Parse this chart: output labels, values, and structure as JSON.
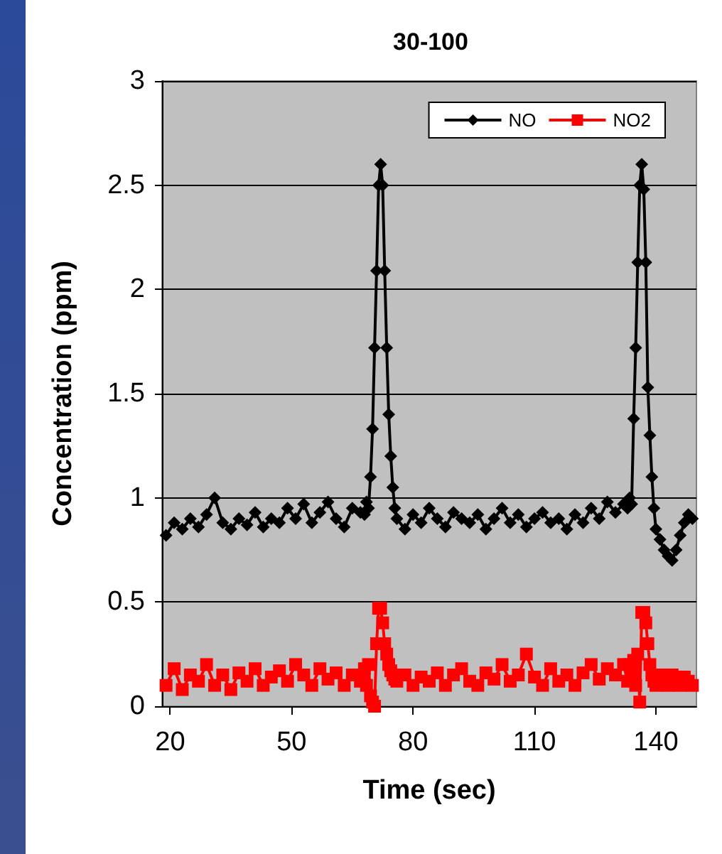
{
  "chart_data": {
    "type": "line",
    "title": "30-100",
    "xlabel": "Time (sec)",
    "ylabel": "Concentration (ppm)",
    "x": [
      19,
      21,
      23,
      25,
      27,
      29,
      31,
      33,
      35,
      37,
      39,
      41,
      43,
      45,
      47,
      49,
      51,
      53,
      55,
      57,
      59,
      61,
      63,
      65,
      67,
      68,
      68.5,
      69,
      69.5,
      70,
      70.5,
      71,
      71.5,
      72,
      72.5,
      73,
      73.5,
      74,
      74.5,
      75,
      75.5,
      76,
      78,
      80,
      82,
      84,
      86,
      88,
      90,
      92,
      94,
      96,
      98,
      100,
      102,
      104,
      106,
      108,
      110,
      112,
      114,
      116,
      118,
      120,
      122,
      124,
      126,
      128,
      130,
      132,
      133,
      133.5,
      134,
      134.5,
      135,
      135.5,
      136,
      136.5,
      137,
      137.5,
      138,
      138.5,
      139,
      139.5,
      140,
      141,
      142,
      143,
      144,
      145,
      146,
      147,
      148,
      149
    ],
    "series": [
      {
        "name": "NO",
        "color": "#000000",
        "marker": "diamond",
        "values": [
          0.82,
          0.88,
          0.85,
          0.9,
          0.86,
          0.92,
          1.0,
          0.88,
          0.85,
          0.9,
          0.87,
          0.93,
          0.86,
          0.9,
          0.88,
          0.95,
          0.9,
          0.97,
          0.88,
          0.93,
          0.98,
          0.9,
          0.86,
          0.95,
          0.93,
          0.92,
          0.98,
          0.95,
          1.1,
          1.33,
          1.72,
          2.09,
          2.5,
          2.6,
          2.5,
          2.09,
          1.72,
          1.4,
          1.2,
          1.05,
          0.95,
          0.9,
          0.85,
          0.92,
          0.88,
          0.95,
          0.9,
          0.86,
          0.93,
          0.9,
          0.88,
          0.92,
          0.85,
          0.9,
          0.95,
          0.88,
          0.92,
          0.86,
          0.9,
          0.93,
          0.88,
          0.9,
          0.85,
          0.92,
          0.88,
          0.95,
          0.9,
          0.98,
          0.93,
          0.97,
          0.95,
          1.0,
          0.97,
          1.38,
          1.72,
          2.13,
          2.5,
          2.6,
          2.48,
          2.13,
          1.53,
          1.3,
          1.1,
          0.95,
          0.85,
          0.8,
          0.75,
          0.72,
          0.7,
          0.75,
          0.82,
          0.88,
          0.92,
          0.9
        ]
      },
      {
        "name": "NO2",
        "color": "#ff0000",
        "marker": "square",
        "values": [
          0.1,
          0.18,
          0.08,
          0.15,
          0.12,
          0.2,
          0.1,
          0.15,
          0.08,
          0.16,
          0.12,
          0.18,
          0.1,
          0.14,
          0.17,
          0.12,
          0.2,
          0.15,
          0.1,
          0.18,
          0.13,
          0.16,
          0.1,
          0.15,
          0.12,
          0.18,
          0.1,
          0.2,
          0.05,
          0.02,
          0.0,
          0.3,
          0.47,
          0.47,
          0.4,
          0.3,
          0.25,
          0.2,
          0.17,
          0.15,
          0.13,
          0.12,
          0.15,
          0.1,
          0.14,
          0.12,
          0.16,
          0.1,
          0.15,
          0.18,
          0.12,
          0.1,
          0.16,
          0.13,
          0.2,
          0.12,
          0.15,
          0.25,
          0.14,
          0.1,
          0.18,
          0.12,
          0.15,
          0.1,
          0.16,
          0.2,
          0.13,
          0.18,
          0.15,
          0.2,
          0.12,
          0.2,
          0.15,
          0.22,
          0.1,
          0.25,
          0.02,
          0.45,
          0.45,
          0.4,
          0.3,
          0.2,
          0.15,
          0.12,
          0.1,
          0.15,
          0.12,
          0.1,
          0.15,
          0.12,
          0.1,
          0.14,
          0.12,
          0.1
        ]
      }
    ],
    "xlim": [
      18,
      150
    ],
    "xticks": [
      20,
      50,
      80,
      110,
      140
    ],
    "ylim": [
      0,
      3
    ],
    "yticks": [
      0,
      0.5,
      1,
      1.5,
      2,
      2.5,
      3
    ],
    "grid": "y",
    "legend": "top right",
    "line_style": "solid"
  }
}
